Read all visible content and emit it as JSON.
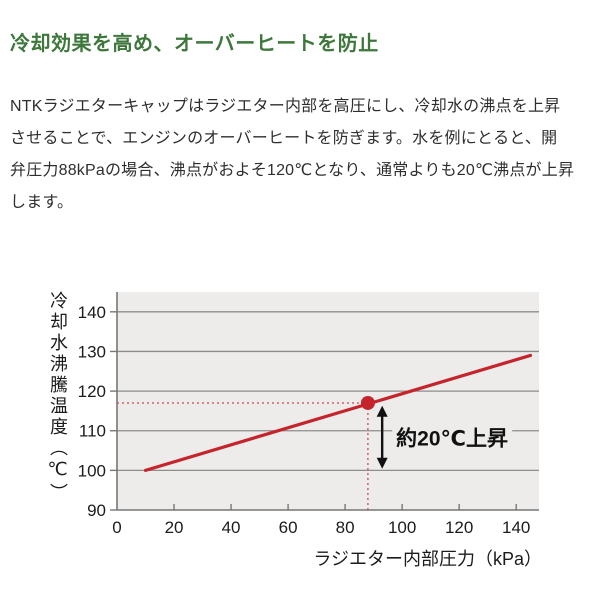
{
  "page": {
    "title": "冷却効果を高め、オーバーヒートを防止",
    "body_lines": [
      "NTKラジエターキャップはラジエター内部を高圧にし、冷却水の沸点を上昇",
      "させることで、エンジンのオーバーヒートを防ぎます。水を例にとると、開",
      "弁圧力88kPaの場合、沸点がおよそ120℃となり、通常よりも20℃沸点が上昇",
      "します。"
    ]
  },
  "colors": {
    "title_green": "#3e773c",
    "body_text": "#2e2e2e",
    "chart_bg": "#edecea",
    "gridline": "#8d8d8d",
    "axis": "#777777",
    "line_red": "#c5242c",
    "guide_red": "#cc4a52",
    "annotation_black": "#111111",
    "tick_label": "#1c1c1c"
  },
  "chart_data": {
    "type": "line",
    "title": "",
    "xlabel": "ラジエター内部圧力（kPa）",
    "ylabel": "冷却水沸騰温度（℃）",
    "xlim": [
      0,
      148
    ],
    "ylim": [
      90,
      145
    ],
    "xticks": [
      0,
      20,
      40,
      60,
      80,
      100,
      120,
      140
    ],
    "yticks": [
      90,
      100,
      110,
      120,
      130,
      140
    ],
    "grid": "horizontal",
    "legend": "none",
    "series": [
      {
        "name": "冷却水沸騰温度",
        "x": [
          10,
          145
        ],
        "y": [
          100,
          129
        ]
      }
    ],
    "marker_point": {
      "x": 88,
      "y": 117
    },
    "guides": {
      "horizontal_dotted_y": 117,
      "vertical_dotted_x": 88
    },
    "annotation": {
      "text": "約20℃上昇",
      "arrow_x": 93,
      "arrow_from_y": 116.3,
      "arrow_to_y": 100.4
    }
  }
}
